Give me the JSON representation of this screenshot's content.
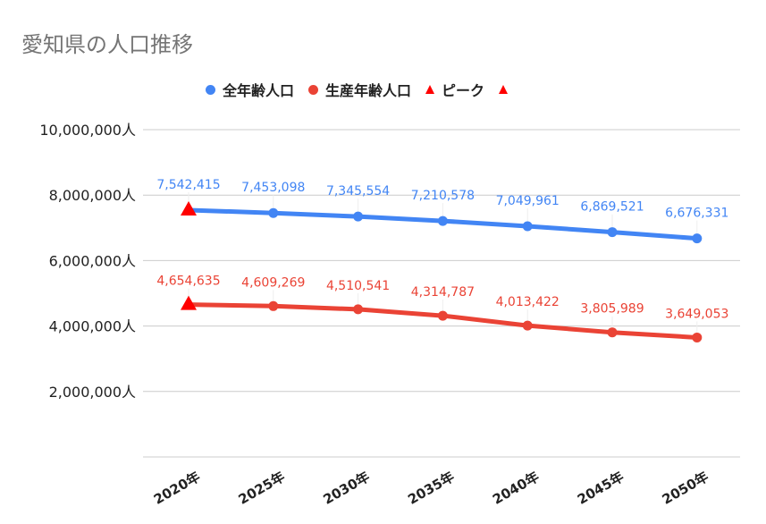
{
  "chart_data": {
    "type": "line",
    "title": "愛知県の人口推移",
    "categories": [
      "2020年",
      "2025年",
      "2030年",
      "2035年",
      "2040年",
      "2045年",
      "2050年"
    ],
    "series": [
      {
        "name": "全年齢人口",
        "color": "#4285f4",
        "values": [
          7542415,
          7453098,
          7345554,
          7210578,
          7049961,
          6869521,
          6676331
        ],
        "labels": [
          "7,542,415",
          "7,453,098",
          "7,345,554",
          "7,210,578",
          "7,049,961",
          "6,869,521",
          "6,676,331"
        ]
      },
      {
        "name": "生産年齢人口",
        "color": "#ea4335",
        "values": [
          4654635,
          4609269,
          4510541,
          4314787,
          4013422,
          3805989,
          3649053
        ],
        "labels": [
          "4,654,635",
          "4,609,269",
          "4,510,541",
          "4,314,787",
          "4,013,422",
          "3,805,989",
          "3,649,053"
        ]
      }
    ],
    "peak": {
      "name": "ピーク",
      "color": "#ff0000",
      "marker": "triangle",
      "points": [
        {
          "category": "2020年",
          "value": 7542415
        },
        {
          "category": "2020年",
          "value": 4654635
        }
      ]
    },
    "legend": {
      "position": "top",
      "entries": [
        "全年齢人口",
        "生産年齢人口",
        "ピーク",
        ""
      ]
    },
    "ylim": [
      0,
      10000000
    ],
    "yticks": [
      2000000,
      4000000,
      6000000,
      8000000,
      10000000
    ],
    "ytick_labels": [
      "2,000,000人",
      "4,000,000人",
      "6,000,000人",
      "8,000,000人",
      "10,000,000人"
    ],
    "grid": true
  }
}
